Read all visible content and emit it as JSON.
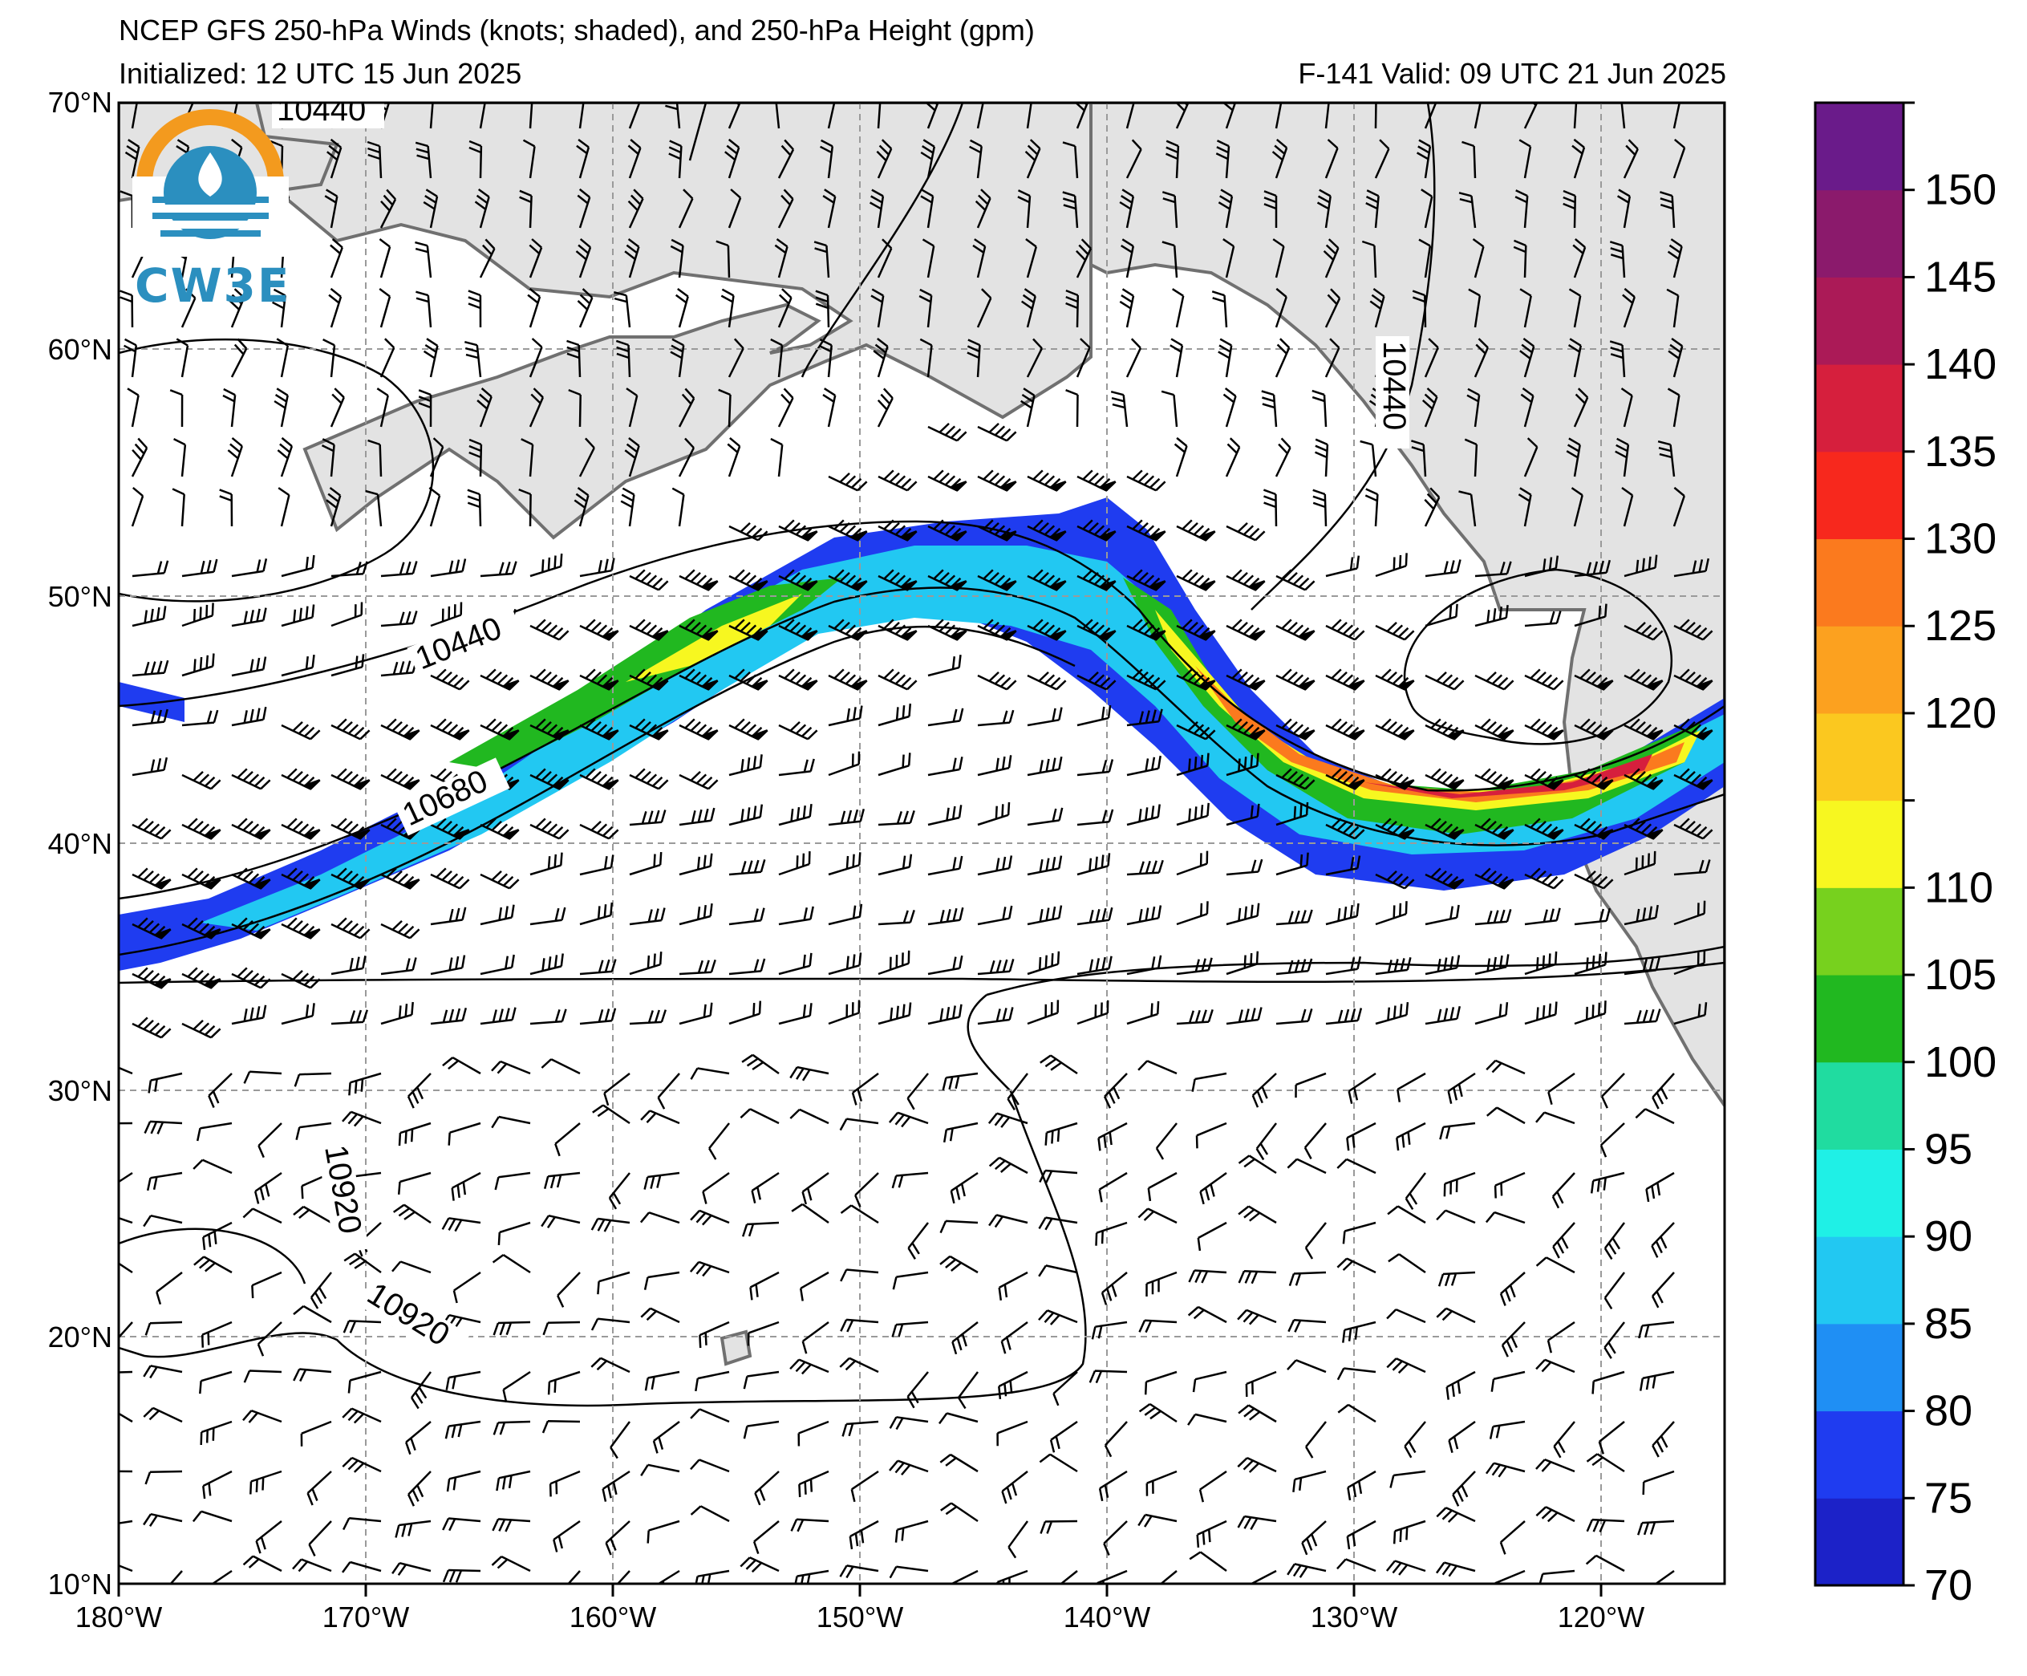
{
  "header": {
    "title": "NCEP GFS 250-hPa Winds (knots; shaded), and 250-hPa Height (gpm)",
    "initialized": "Initialized: 12 UTC 15 Jun 2025",
    "valid": "F-141  Valid: 09 UTC 21 Jun 2025"
  },
  "logo": {
    "text": "CW3E",
    "colors": {
      "sun": "#f39a1e",
      "water": "#2b8fbf"
    }
  },
  "map": {
    "lat_labels": [
      "70°N",
      "60°N",
      "50°N",
      "40°N",
      "30°N",
      "20°N",
      "10°N"
    ],
    "lon_labels": [
      "180°W",
      "170°W",
      "160°W",
      "150°W",
      "140°W",
      "130°W",
      "120°W"
    ],
    "lat_values": [
      70,
      60,
      50,
      40,
      30,
      20,
      10
    ],
    "lon_values": [
      -180,
      -170,
      -160,
      -150,
      -140,
      -130,
      -120
    ],
    "extent": {
      "lon": [
        -180,
        -115
      ],
      "lat": [
        10,
        70
      ]
    },
    "contour_labels": [
      "10440",
      "10440",
      "10440",
      "10680",
      "10920",
      "10920"
    ],
    "land_color": "#e3e3e3",
    "grid_style": "dashed gray"
  },
  "colorbar": {
    "ticks": [
      "70",
      "75",
      "80",
      "85",
      "90",
      "95",
      "100",
      "105",
      "110",
      "115",
      "120",
      "125",
      "130",
      "135",
      "140",
      "145",
      "150",
      "155"
    ],
    "tick_labels": [
      "70",
      "75",
      "80",
      "85",
      "90",
      "95",
      "100",
      "105",
      "110",
      "",
      "120",
      "125",
      "130",
      "135",
      "140",
      "145",
      "150",
      ""
    ],
    "colors": [
      "#1c22c8",
      "#1f3cf0",
      "#1f8ff4",
      "#22c8f2",
      "#1ff0e6",
      "#20dca0",
      "#21b820",
      "#77d11e",
      "#f7f720",
      "#fbc81f",
      "#fca11f",
      "#fb7a1e",
      "#f7281d",
      "#d61f3d",
      "#ab1a57",
      "#8b1a6c",
      "#6a1b8a"
    ]
  }
}
